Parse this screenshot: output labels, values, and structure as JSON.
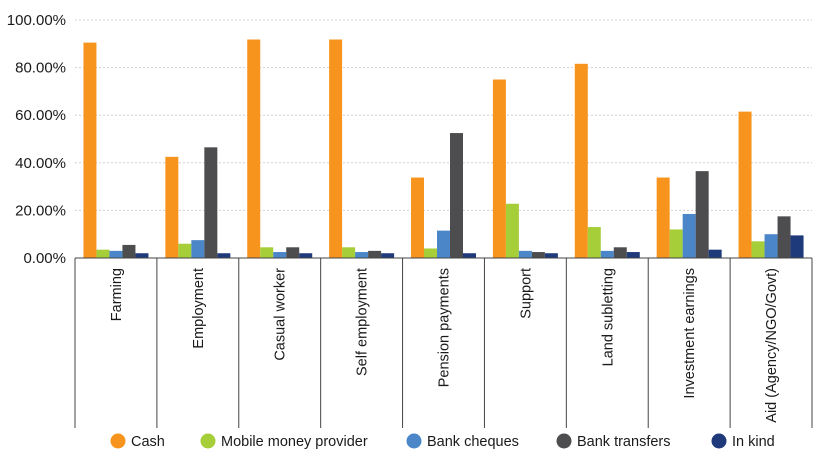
{
  "chart_data": {
    "type": "bar",
    "categories": [
      "Farming",
      "Employment",
      "Casual worker",
      "Self employment",
      "Pension payments",
      "Support",
      "Land subletting",
      "Investment earnings",
      "Aid (Agency/NGO/Govt)"
    ],
    "series": [
      {
        "name": "Cash",
        "color": "#f7941d",
        "values": [
          90.5,
          42.5,
          91.8,
          91.8,
          33.8,
          75.0,
          81.6,
          33.8,
          61.5
        ]
      },
      {
        "name": "Mobile money provider",
        "color": "#a6ce39",
        "values": [
          3.5,
          6.0,
          4.5,
          4.5,
          4.0,
          22.8,
          13.0,
          12.0,
          7.0
        ]
      },
      {
        "name": "Bank cheques",
        "color": "#4a86c8",
        "values": [
          3.0,
          7.5,
          2.5,
          2.5,
          11.5,
          3.0,
          3.0,
          18.5,
          10.0
        ]
      },
      {
        "name": "Bank transfers",
        "color": "#4d4d4f",
        "values": [
          5.5,
          46.5,
          4.5,
          3.0,
          52.5,
          2.5,
          4.5,
          36.5,
          17.5
        ]
      },
      {
        "name": "In kind",
        "color": "#1f3a7a",
        "values": [
          2.0,
          2.0,
          2.0,
          2.0,
          2.0,
          2.0,
          2.5,
          3.5,
          9.5
        ]
      }
    ],
    "yticks": [
      "0.00%",
      "20.00%",
      "40.00%",
      "60.00%",
      "80.00%",
      "100.00%"
    ],
    "ylim": [
      0,
      100
    ],
    "grid": true,
    "legend": "bottom"
  }
}
